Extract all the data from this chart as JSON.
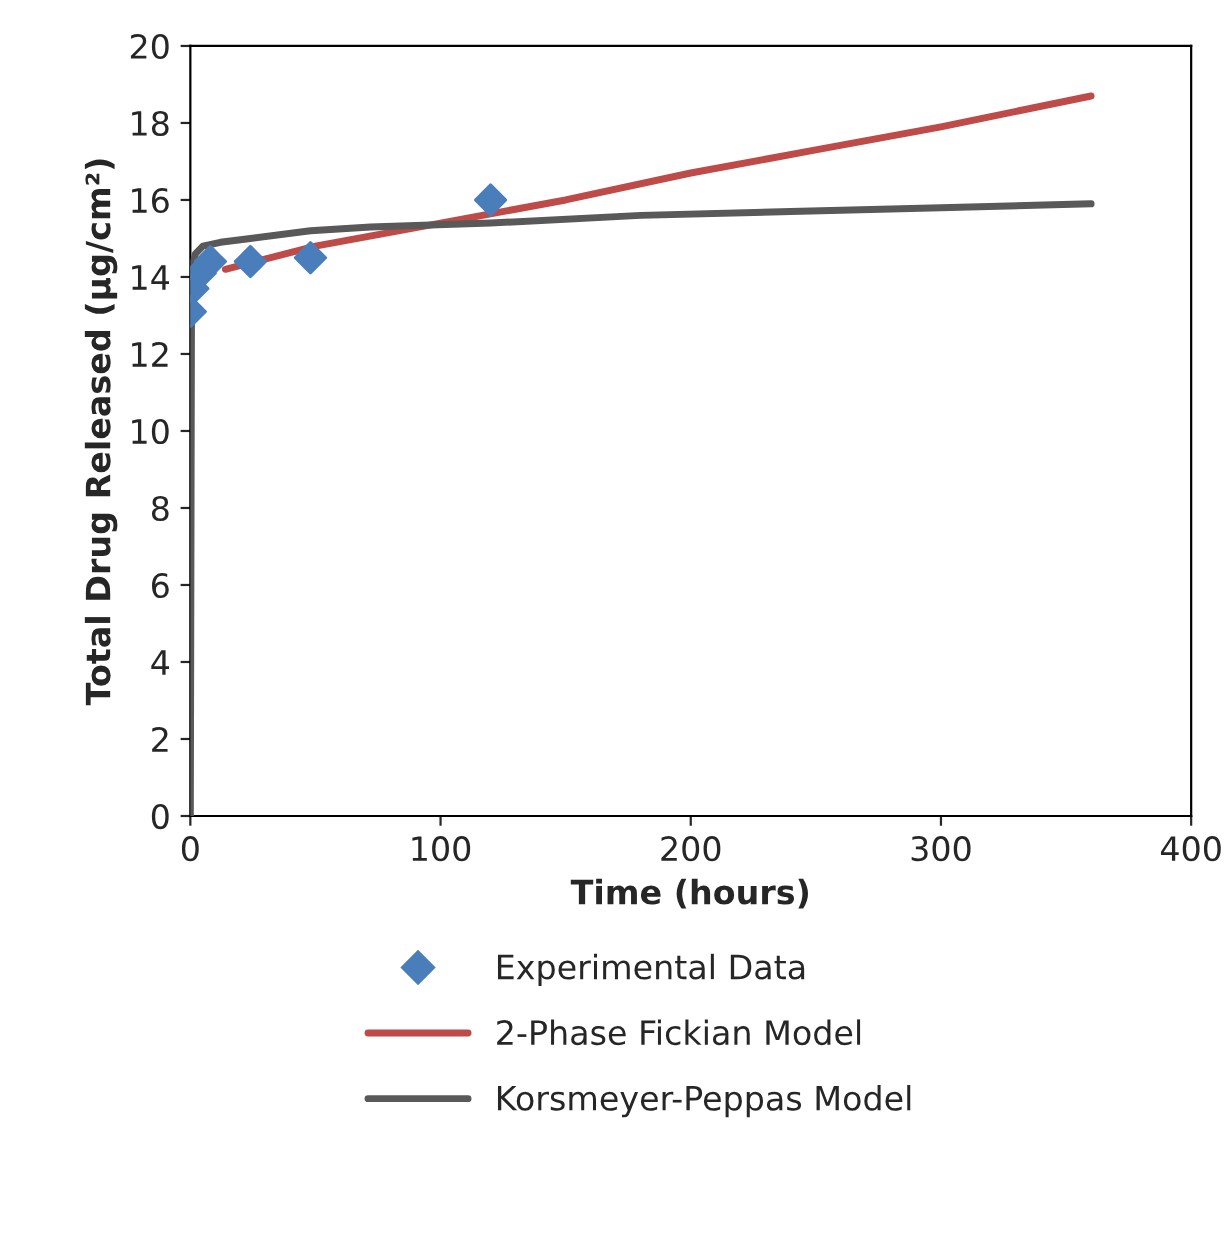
{
  "chart_data": {
    "type": "scatter",
    "xlabel": "Time (hours)",
    "ylabel": "Total Drug Released (µg/cm²)",
    "xlim": [
      0,
      400
    ],
    "xticks": [
      0,
      100,
      200,
      300,
      400
    ],
    "ylim": [
      0,
      20
    ],
    "yticks": [
      0,
      2,
      4,
      6,
      8,
      10,
      12,
      14,
      16,
      18,
      20
    ],
    "grid": false,
    "legend": "bottom",
    "series": [
      {
        "name": "Experimental Data",
        "marker": "diamond",
        "color": "#4a7ebb",
        "x": [
          0,
          1,
          4,
          8,
          24,
          48,
          120
        ],
        "values": [
          13.1,
          13.7,
          14.1,
          14.4,
          14.4,
          14.5,
          16.0
        ]
      },
      {
        "name": "2-Phase Fickian Model",
        "type": "line",
        "marker": "none",
        "color": "#be4b48",
        "x": [
          14,
          50,
          100,
          150,
          200,
          250,
          300,
          360
        ],
        "values": [
          14.2,
          14.8,
          15.4,
          16.0,
          16.7,
          17.3,
          17.9,
          18.7
        ]
      },
      {
        "name": "Korsmeyer-Peppas Model",
        "type": "line",
        "marker": "none",
        "color": "#595959",
        "x": [
          0,
          0.5,
          2,
          5,
          12,
          24,
          48,
          72,
          120,
          180,
          240,
          300,
          360
        ],
        "values": [
          0,
          14.2,
          14.6,
          14.8,
          14.9,
          15.0,
          15.2,
          15.3,
          15.4,
          15.6,
          15.7,
          15.8,
          15.9
        ]
      }
    ]
  }
}
